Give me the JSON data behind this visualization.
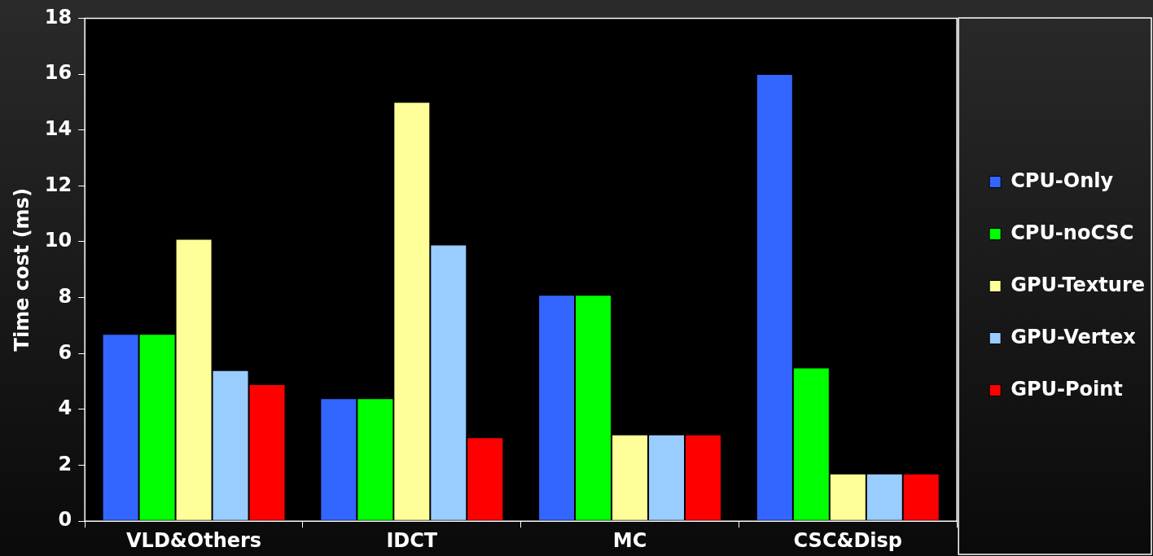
{
  "chart_data": {
    "type": "bar",
    "ylabel": "Time cost (ms)",
    "categories": [
      "VLD&Others",
      "IDCT",
      "MC",
      "CSC&Disp"
    ],
    "series": [
      {
        "name": "CPU-Only",
        "color": "#3366ff",
        "values": [
          6.7,
          4.4,
          8.1,
          16
        ]
      },
      {
        "name": "CPU-noCSC",
        "color": "#00ff00",
        "values": [
          6.7,
          4.4,
          8.1,
          5.5
        ]
      },
      {
        "name": "GPU-Texture",
        "color": "#ffff99",
        "values": [
          10.1,
          15,
          3.1,
          1.7
        ]
      },
      {
        "name": "GPU-Vertex",
        "color": "#99ccff",
        "values": [
          5.4,
          9.9,
          3.1,
          1.7
        ]
      },
      {
        "name": "GPU-Point",
        "color": "#ff0000",
        "values": [
          4.9,
          3.0,
          3.1,
          1.7
        ]
      }
    ],
    "ylim": [
      0,
      18
    ],
    "yticks": [
      0,
      2,
      4,
      6,
      8,
      10,
      12,
      14,
      16,
      18
    ],
    "legend": "right"
  }
}
